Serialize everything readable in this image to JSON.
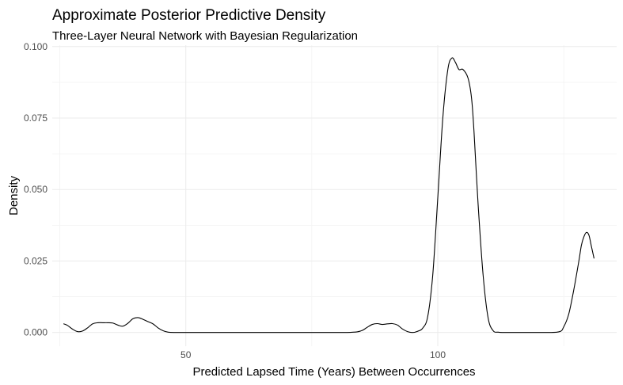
{
  "chart_data": {
    "type": "line",
    "title": "Approximate Posterior Predictive Density",
    "subtitle": "Three-Layer Neural Network with Bayesian Regularization",
    "xlabel": "Predicted Lapsed Time (Years) Between Occurrences",
    "ylabel": "Density",
    "xlim": [
      23.5,
      135.5
    ],
    "ylim": [
      -0.0048,
      0.1005
    ],
    "x_ticks": [
      50,
      100
    ],
    "x_tick_labels": [
      "50",
      "100"
    ],
    "x_minor_ticks": [
      25,
      75,
      125
    ],
    "y_ticks": [
      0.0,
      0.025,
      0.05,
      0.075,
      0.1
    ],
    "y_tick_labels": [
      "0.000",
      "0.025",
      "0.050",
      "0.075",
      "0.100"
    ],
    "y_minor_ticks": [
      0.0125,
      0.0375,
      0.0625,
      0.0875
    ],
    "grid": true,
    "line_color": "#000000",
    "series": [
      {
        "x": [
          25.8,
          26.5,
          27.5,
          28.5,
          29.5,
          30.5,
          31.5,
          32.5,
          33.5,
          34.5,
          35.5,
          36.5,
          37.5,
          38.5,
          39.5,
          40.5,
          41.5,
          42.5,
          43.5,
          44.5,
          45.5,
          46.5,
          48,
          50,
          60,
          70,
          80,
          82,
          84,
          85,
          86,
          87,
          88,
          89,
          90,
          91,
          92,
          93,
          94,
          95,
          96,
          97,
          98,
          99,
          100,
          101,
          102,
          102.8,
          103.5,
          104.2,
          105,
          106,
          106.7,
          107.2,
          108,
          109,
          110,
          111,
          112,
          113,
          114,
          116,
          120,
          124,
          125,
          126,
          127,
          128,
          128.5,
          129,
          129.5,
          130,
          130.5,
          131
        ],
        "y": [
          0.003,
          0.0025,
          0.0012,
          0.0003,
          0.0005,
          0.0016,
          0.003,
          0.0034,
          0.0034,
          0.0034,
          0.0033,
          0.0026,
          0.0022,
          0.0032,
          0.0048,
          0.0052,
          0.0046,
          0.0038,
          0.003,
          0.0016,
          0.0006,
          0.0001,
          0.0,
          0.0,
          0.0,
          0.0,
          0.0,
          0.0,
          0.0002,
          0.0007,
          0.0018,
          0.0028,
          0.0031,
          0.0028,
          0.003,
          0.0031,
          0.0026,
          0.0012,
          0.0003,
          0.0,
          0.0004,
          0.0015,
          0.0055,
          0.02,
          0.047,
          0.075,
          0.092,
          0.096,
          0.0945,
          0.092,
          0.092,
          0.089,
          0.082,
          0.07,
          0.045,
          0.02,
          0.005,
          0.0006,
          0.0001,
          0.0,
          0.0,
          0.0,
          0.0,
          0.0002,
          0.002,
          0.0065,
          0.015,
          0.025,
          0.0305,
          0.0335,
          0.035,
          0.034,
          0.03,
          0.026
        ]
      }
    ]
  }
}
